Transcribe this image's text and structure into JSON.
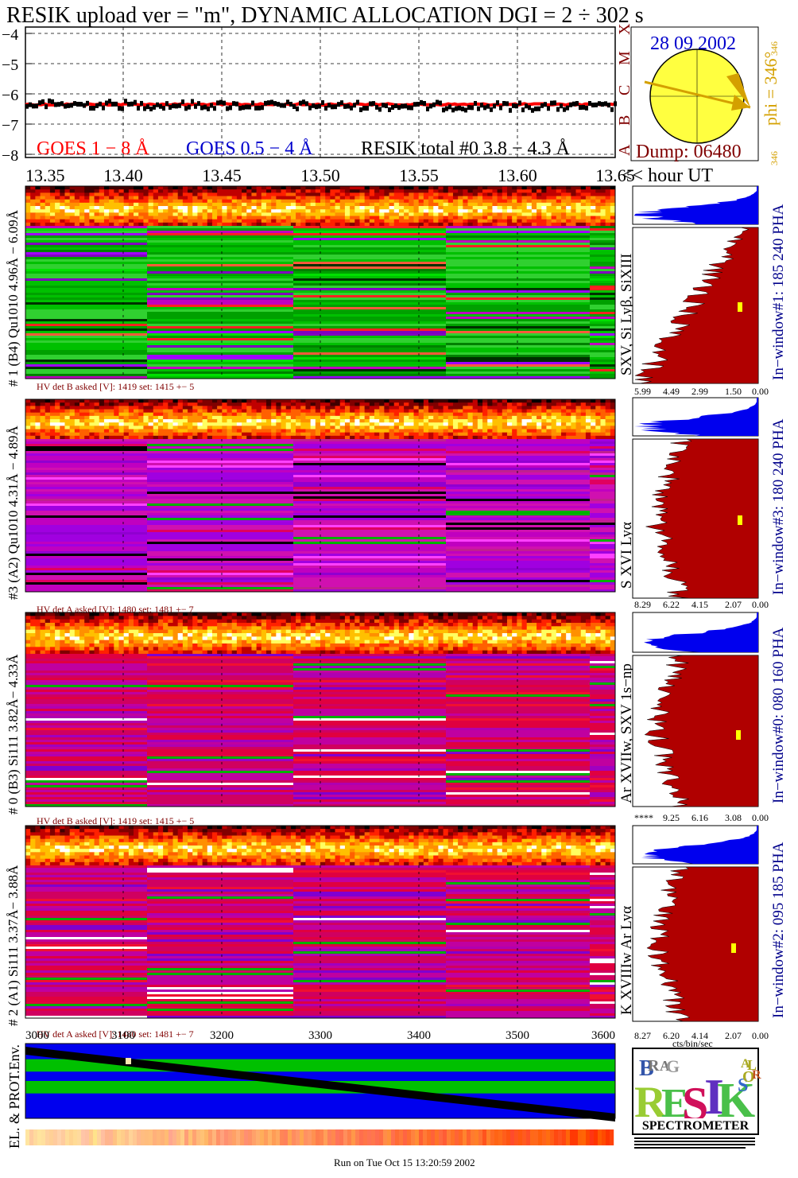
{
  "title": "RESIK upload ver = \"m\", DYNAMIC ALLOCATION  DGI =   2 ÷ 302 s",
  "colors": {
    "title": "#6b0015",
    "goes_long": "#ff0000",
    "goes_short": "#0000cc",
    "resik_total": "#000000",
    "sun_fill": "#ffff40",
    "sun_arrow": "#d4a000",
    "phi_text": "#d4a000",
    "window_label": "#00008b",
    "histogram_fill": "#b00000",
    "pha_fill": "#0000ee",
    "hv_label": "#800000"
  },
  "goes_panel": {
    "y_ticks": [
      "−4",
      "−5",
      "−6",
      "−7",
      "−8"
    ],
    "legend": {
      "goes_long": "GOES 1 − 8 Å",
      "goes_short": "GOES 0.5 − 4 Å",
      "resik_total": "RESIK total #0  3.8 − 4.3 Å"
    },
    "x_ticks": [
      "13.35",
      "13.40",
      "13.45",
      "13.50",
      "13.55",
      "13.60",
      "13.65"
    ],
    "x_unit": "<< hour UT",
    "class_letters": [
      "A",
      "B",
      "C",
      "M",
      "X"
    ]
  },
  "sun_box": {
    "date": "28 09 2002",
    "phi": "phi = 346°",
    "phi_small": "346",
    "phi_small_bottom": "346",
    "dump": "Dump: 06480"
  },
  "detectors": [
    {
      "left_label": "# 1 (B4) Qu1010 4.96Å − 6.09Å",
      "lines_label": "SXV, Si Lyβ, SiXIII",
      "window_label": "In−window#1:  185 240 PHA",
      "hv_text": "HV det B asked [V]:  1419 set:  1415 +−   5",
      "axis_ticks": [
        "5.99",
        "4.49",
        "2.99",
        "1.50",
        "0.00"
      ],
      "palette": "green"
    },
    {
      "left_label": "#3 (A2) Qu1010  4.31Å − 4.89Å",
      "lines_label": "S XVI Lyα",
      "window_label": "In−window#3:  180 240 PHA",
      "hv_text": "HV det A asked [V]:  1480 set:  1481 +−   7",
      "axis_ticks": [
        "8.29",
        "6.22",
        "4.15",
        "2.07",
        "0.00"
      ],
      "palette": "purple"
    },
    {
      "left_label": "# 0 (B3) Si111  3.82Å− 4.33Å",
      "lines_label": "Ar XVIIw,  SXV 1s−np",
      "window_label": "In−window#0:  080 160 PHA",
      "hv_text": "HV det B asked [V]:  1419 set:  1415 +−   5",
      "axis_ticks": [
        "****",
        "9.25",
        "6.16",
        "3.08",
        "0.00"
      ],
      "palette": "crimson"
    },
    {
      "left_label": "# 2 (A1) Si111  3.37Å− 3.88Å",
      "lines_label": "K XVIIIw  Ar Lyα",
      "window_label": "In−window#2:  095 185 PHA",
      "hv_text": "HV det A asked [V]:  1480 set:  1481 +−   7",
      "axis_ticks": [
        "8.27",
        "6.20",
        "4.14",
        "2.07",
        "0.00"
      ],
      "palette": "crimson"
    }
  ],
  "bottom_axis": {
    "ticks": [
      "3000",
      "3100",
      "3200",
      "3300",
      "3400",
      "3500",
      "3600"
    ],
    "unit_label": "cts/bin/sec"
  },
  "env_label": "EL. & PROT.Env.",
  "logo": {
    "letters": [
      "B",
      "R",
      "A",
      "G",
      "R",
      "E",
      "S",
      "I",
      "K",
      "S",
      "O",
      "L",
      "A",
      "R"
    ],
    "spectrometer": "SPECTROMETER"
  },
  "footer": "Run on Tue Oct 15 13:20:59 2002"
}
